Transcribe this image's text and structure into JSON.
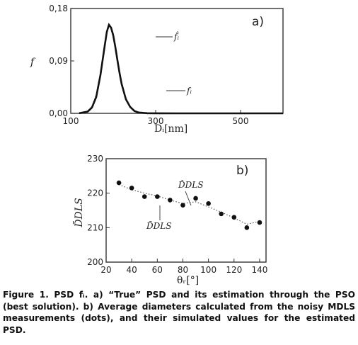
{
  "caption": {
    "text": "Figure 1. PSD fᵢ. a) “True” PSD and its estimation through the PSO (best solution). b) Average diameters calculated from the noisy MDLS measurements (dots), and their simulated values for the estimated PSD."
  },
  "chart_data": [
    {
      "type": "line",
      "panel_label": "a)",
      "xlabel": "Dᵢ[nm]",
      "ylabel": "f",
      "xlim": [
        100,
        600
      ],
      "ylim": [
        0,
        0.18
      ],
      "x_ticks": [
        100,
        300,
        500
      ],
      "y_ticks": [
        "0,00",
        "0,09",
        "0,18"
      ],
      "grid": false,
      "series": [
        {
          "name": "f̂ᵢ",
          "style": "dotted",
          "x": [
            120,
            140,
            150,
            160,
            170,
            180,
            185,
            190,
            195,
            200,
            205,
            210,
            215,
            220,
            230,
            240,
            250,
            260,
            280,
            300,
            350,
            600
          ],
          "y": [
            0.0005,
            0.004,
            0.012,
            0.032,
            0.07,
            0.118,
            0.138,
            0.15,
            0.148,
            0.138,
            0.118,
            0.095,
            0.072,
            0.053,
            0.026,
            0.012,
            0.005,
            0.002,
            0.0003,
            0.0001,
            0,
            0
          ]
        },
        {
          "name": "fᵢ",
          "style": "solid",
          "x": [
            120,
            140,
            150,
            160,
            170,
            180,
            185,
            190,
            195,
            200,
            205,
            210,
            215,
            220,
            230,
            240,
            250,
            260,
            280,
            300,
            350,
            600
          ],
          "y": [
            0.0003,
            0.003,
            0.01,
            0.028,
            0.066,
            0.116,
            0.14,
            0.152,
            0.147,
            0.134,
            0.114,
            0.091,
            0.069,
            0.05,
            0.024,
            0.011,
            0.004,
            0.0015,
            0.0002,
            0.0001,
            0,
            0
          ]
        }
      ],
      "annotations": [
        "f̂ᵢ",
        "fᵢ"
      ]
    },
    {
      "type": "scatter",
      "panel_label": "b)",
      "xlabel": "θᵣ[°]",
      "ylabel": "D̄DLS",
      "xlim": [
        20,
        145
      ],
      "ylim": [
        200,
        230
      ],
      "x_ticks": [
        20,
        40,
        60,
        80,
        100,
        120,
        140
      ],
      "y_ticks": [
        200,
        210,
        220,
        230
      ],
      "grid": false,
      "series": [
        {
          "name": "D̃DLS",
          "style": "dots",
          "x": [
            30,
            40,
            50,
            60,
            70,
            80,
            90,
            100,
            110,
            120,
            130,
            140
          ],
          "y": [
            223,
            221.5,
            219,
            219,
            218,
            216.5,
            218.5,
            217,
            214,
            213,
            210,
            211.5
          ]
        },
        {
          "name": "D̂DLS",
          "style": "dotted",
          "x": [
            30,
            40,
            50,
            60,
            70,
            80,
            90,
            100,
            110,
            120,
            130,
            140
          ],
          "y": [
            222.5,
            221,
            220,
            219.2,
            218,
            217,
            217.5,
            216,
            214.5,
            212.8,
            211,
            211.8
          ]
        }
      ],
      "annotations": [
        "D̂DLS",
        "D̃DLS"
      ]
    }
  ]
}
